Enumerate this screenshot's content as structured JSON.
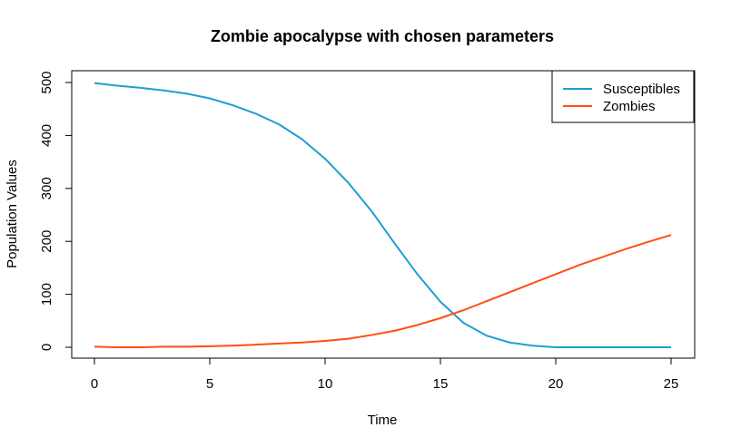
{
  "chart_data": {
    "type": "line",
    "title": "Zombie apocalypse with chosen parameters",
    "xlabel": "Time",
    "ylabel": "Population Values",
    "xlim": [
      0,
      25
    ],
    "ylim": [
      0,
      500
    ],
    "x_ticks": [
      0,
      5,
      10,
      15,
      20,
      25
    ],
    "y_ticks": [
      0,
      100,
      200,
      300,
      400,
      500
    ],
    "grid": false,
    "legend_position": "top-right",
    "x": [
      0,
      1,
      2,
      3,
      4,
      5,
      6,
      7,
      8,
      9,
      10,
      11,
      12,
      13,
      14,
      15,
      16,
      17,
      18,
      19,
      20,
      21,
      22,
      23,
      24,
      25
    ],
    "series": [
      {
        "name": "Susceptibles",
        "color": "#1e9ed1",
        "values": [
          499,
          494,
          490,
          485,
          479,
          470,
          457,
          441,
          421,
          393,
          356,
          311,
          258,
          197,
          138,
          86,
          46,
          22,
          9,
          3,
          0,
          0,
          0,
          0,
          0,
          0
        ]
      },
      {
        "name": "Zombies",
        "color": "#ff4e10",
        "values": [
          1,
          0,
          0,
          1,
          1,
          2,
          3,
          5,
          7,
          9,
          12,
          16,
          23,
          31,
          42,
          55,
          70,
          87,
          104,
          121,
          138,
          155,
          170,
          185,
          199,
          212
        ]
      }
    ]
  }
}
